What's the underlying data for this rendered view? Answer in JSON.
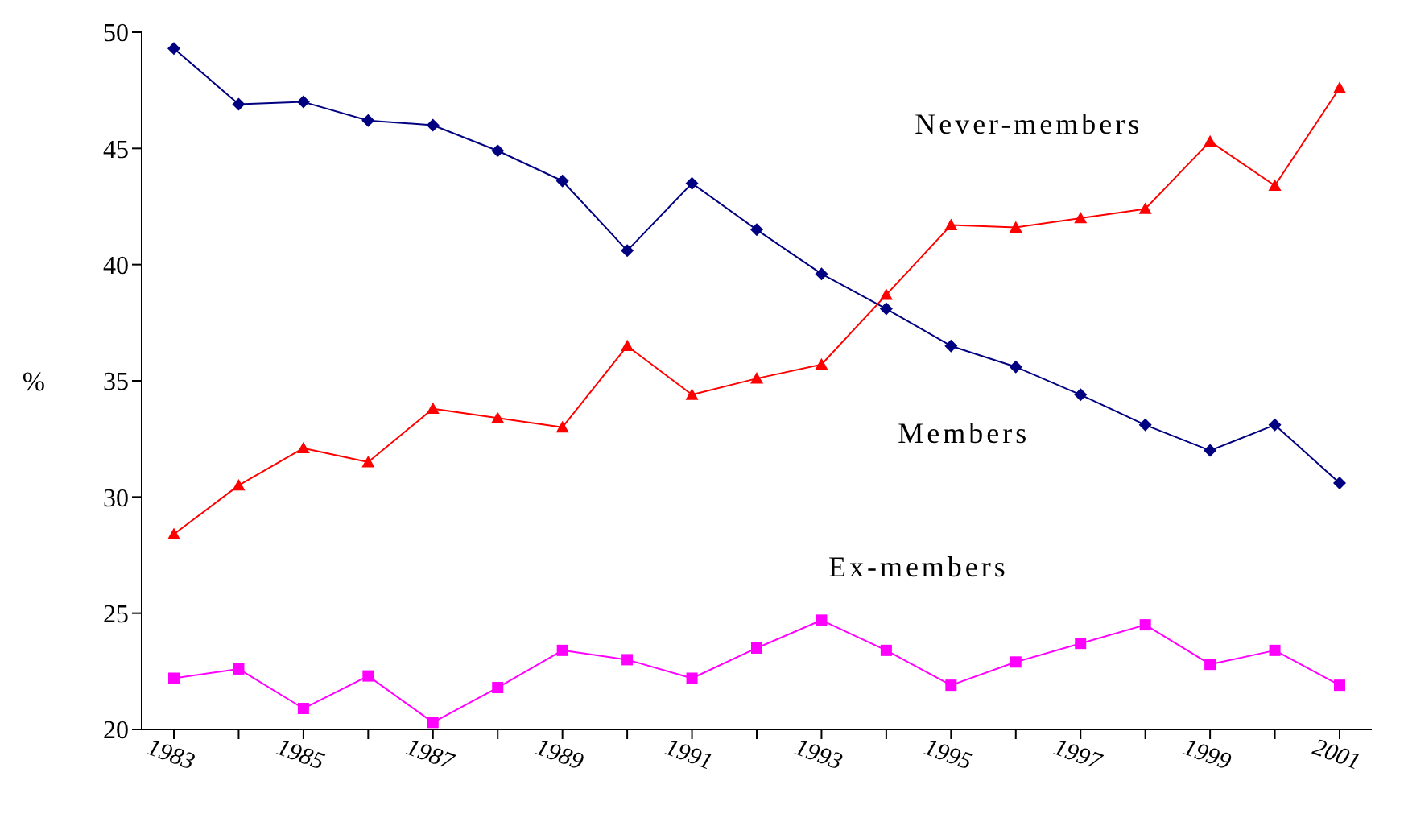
{
  "chart_data": {
    "type": "line",
    "ylabel": "%",
    "categories": [
      "1983",
      null,
      "1985",
      null,
      "1987",
      null,
      "1989",
      null,
      "1991",
      null,
      "1993",
      null,
      "1995",
      null,
      "1997",
      null,
      "1999",
      null,
      "2001"
    ],
    "series": [
      {
        "name": "Members",
        "color": "#000080",
        "marker": "diamond",
        "values": [
          49.3,
          46.9,
          47.0,
          46.2,
          46.0,
          44.9,
          43.6,
          40.6,
          43.5,
          41.5,
          39.6,
          38.1,
          36.5,
          35.6,
          34.4,
          33.1,
          32.0,
          33.1,
          30.6
        ]
      },
      {
        "name": "Never-members",
        "color": "#ff0000",
        "marker": "triangle",
        "values": [
          28.4,
          30.5,
          32.1,
          31.5,
          33.8,
          33.4,
          33.0,
          36.5,
          34.4,
          35.1,
          35.7,
          38.7,
          41.7,
          41.6,
          42.0,
          42.4,
          45.3,
          43.4,
          47.6
        ]
      },
      {
        "name": "Ex-members",
        "color": "#ff00ff",
        "marker": "square",
        "values": [
          22.2,
          22.6,
          20.9,
          22.3,
          20.3,
          21.8,
          23.4,
          23.0,
          22.2,
          23.5,
          24.7,
          23.4,
          21.9,
          22.9,
          23.7,
          24.5,
          22.8,
          23.4,
          21.9
        ]
      }
    ],
    "ylim": [
      20,
      50
    ],
    "yticks": [
      20,
      25,
      30,
      35,
      40,
      45,
      50
    ],
    "grid": false,
    "legend": false,
    "line_style": "solid"
  }
}
